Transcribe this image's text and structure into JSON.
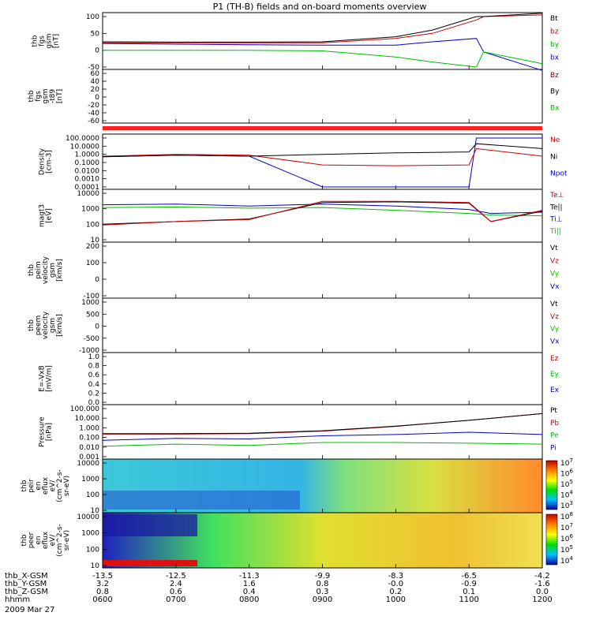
{
  "title": "P1 (TH-B) fields and on-board moments overview",
  "date_label": "2009 Mar 27",
  "time_axis": {
    "row_labels": [
      "thb_X-GSM",
      "thb_Y-GSM",
      "thb_Z-GSM",
      "hhmm"
    ],
    "columns": [
      [
        "-13.5",
        "3.2",
        "0.8",
        "0600"
      ],
      [
        "-12.5",
        "2.4",
        "0.6",
        "0700"
      ],
      [
        "-11.3",
        "1.6",
        "0.4",
        "0800"
      ],
      [
        "-9.9",
        "0.8",
        "0.3",
        "0900"
      ],
      [
        "-8.3",
        "-0.0",
        "0.2",
        "1000"
      ],
      [
        "-6.5",
        "-0.9",
        "0.1",
        "1100"
      ],
      [
        "-4.2",
        "-1.6",
        "0.0",
        "1200"
      ]
    ]
  },
  "panels": [
    {
      "ylabel": [
        "thb",
        "fgs",
        "gsm",
        "[nT]"
      ],
      "ticks": [
        "100",
        "50",
        "0",
        "-50"
      ],
      "legend": [
        [
          "Bt",
          "#000000"
        ],
        [
          "bz",
          "#cc0000"
        ],
        [
          "by",
          "#00bb00"
        ],
        [
          "bx",
          "#0000cc"
        ]
      ]
    },
    {
      "ylabel": [
        "thb",
        "fgs",
        "gsm",
        "-t89",
        "[nT]"
      ],
      "ticks": [
        "60",
        "40",
        "20",
        "0",
        "-20",
        "-40",
        "-60"
      ],
      "legend": [
        [
          "Bz",
          "#880000"
        ],
        [
          "By",
          "#000000"
        ],
        [
          "Bx",
          "#00bb00"
        ]
      ]
    },
    {
      "ylabel": [],
      "ticks": [],
      "legend": []
    },
    {
      "ylabel": [
        "Density",
        "[cm-3]"
      ],
      "ticks": [
        "100.0000",
        "10.0000",
        "1.0000",
        "0.1000",
        "0.0100",
        "0.0010",
        "0.0001"
      ],
      "legend": [
        [
          "Ne",
          "#cc0000"
        ],
        [
          "Ni",
          "#000000"
        ],
        [
          "Npot",
          "#0000cc"
        ]
      ]
    },
    {
      "ylabel": [
        "magt3",
        "[eV]"
      ],
      "ticks": [
        "10000",
        "1000",
        "100",
        "10"
      ],
      "legend": [
        [
          "Te⊥",
          "#cc0000"
        ],
        [
          "Te||",
          "#000000"
        ],
        [
          "Ti⊥",
          "#0000cc"
        ],
        [
          "Ti||",
          "#00bb00"
        ]
      ]
    },
    {
      "ylabel": [
        "thb",
        "peim",
        "velocity",
        "gsm",
        "[km/s]"
      ],
      "ticks": [
        "200",
        "100",
        "0",
        "-100"
      ],
      "legend": [
        [
          "Vt",
          "#000000"
        ],
        [
          "Vz",
          "#cc0000"
        ],
        [
          "Vy",
          "#00bb00"
        ],
        [
          "Vx",
          "#0000cc"
        ]
      ]
    },
    {
      "ylabel": [
        "thb",
        "peem",
        "velocity",
        "gsm",
        "[km/s]"
      ],
      "ticks": [
        "1000",
        "500",
        "0",
        "-500",
        "-1000"
      ],
      "legend": [
        [
          "Vt",
          "#000000"
        ],
        [
          "Vz",
          "#cc0000"
        ],
        [
          "Vy",
          "#00bb00"
        ],
        [
          "Vx",
          "#0000cc"
        ]
      ]
    },
    {
      "ylabel": [
        "E=-VxB",
        "[mV/m]"
      ],
      "ticks": [
        "1.0",
        "0.8",
        "0.6",
        "0.4",
        "0.2",
        "0.0"
      ],
      "legend": [
        [
          "Ez",
          "#cc0000"
        ],
        [
          "Ey",
          "#00bb00"
        ],
        [
          "Ex",
          "#0000cc"
        ]
      ]
    },
    {
      "ylabel": [
        "Pressure",
        "[nPa]"
      ],
      "ticks": [
        "100.000",
        "10.000",
        "1.000",
        "0.100",
        "0.010",
        "0.001"
      ],
      "legend": [
        [
          "Pt",
          "#000000"
        ],
        [
          "Pb",
          "#cc0000"
        ],
        [
          "Pe",
          "#00bb00"
        ],
        [
          "Pi",
          "#0000cc"
        ]
      ]
    },
    {
      "ylabel": [
        "thb",
        "peir",
        "en",
        "eflux",
        "eV/",
        "(cm^2-s-",
        "sr-eV)"
      ],
      "ticks": [
        "10000",
        "1000",
        "100",
        "10"
      ],
      "legend": [],
      "colorbar": [
        "10^7",
        "10^6",
        "10^5",
        "10^4",
        "10^3"
      ]
    },
    {
      "ylabel": [
        "thb",
        "peer",
        "en",
        "eflux",
        "eV/",
        "(cm^2-s-",
        "sr-eV)"
      ],
      "ticks": [
        "10000",
        "1000",
        "100",
        "10"
      ],
      "legend": [],
      "colorbar": [
        "10^8",
        "10^7",
        "10^6",
        "10^5",
        "10^4"
      ]
    }
  ],
  "chart_data": {
    "type": "line",
    "title": "P1 (TH-B) fields and on-board moments overview",
    "x_times": [
      "0600",
      "0700",
      "0800",
      "0900",
      "1000",
      "1100",
      "1200"
    ],
    "fgs_field_nT": {
      "x": [
        600,
        700,
        800,
        900,
        1000,
        1050,
        1110,
        1120,
        1200
      ],
      "Bt": [
        25,
        24,
        24,
        25,
        40,
        60,
        100,
        100,
        110
      ],
      "bz": [
        22,
        22,
        22,
        22,
        35,
        50,
        90,
        100,
        105
      ],
      "by": [
        0,
        0,
        0,
        -2,
        -20,
        -35,
        -50,
        -5,
        -40
      ],
      "bx": [
        20,
        18,
        16,
        15,
        15,
        25,
        35,
        -5,
        -60
      ]
    },
    "density_cm3": {
      "x": [
        600,
        700,
        800,
        900,
        1000,
        1100,
        1110,
        1200
      ],
      "Ni": [
        0.5,
        0.8,
        0.6,
        1.0,
        1.5,
        2.0,
        20.0,
        5.0
      ],
      "Ne": [
        0.6,
        1.0,
        0.8,
        0.05,
        0.04,
        0.05,
        5.0,
        0.6
      ],
      "Npot": [
        0.5,
        0.8,
        0.6,
        0.0001,
        0.0001,
        0.0001,
        100.0,
        100.0
      ]
    },
    "temperature_eV": {
      "x": [
        600,
        700,
        800,
        900,
        1000,
        1100,
        1130,
        1200
      ],
      "Te_perp": [
        90,
        150,
        200,
        3000,
        3000,
        2500,
        150,
        800
      ],
      "Te_par": [
        100,
        150,
        220,
        2500,
        2800,
        2300,
        150,
        700
      ],
      "Ti_perp": [
        1800,
        2000,
        1500,
        2000,
        1500,
        900,
        500,
        600
      ],
      "Ti_par": [
        1200,
        1300,
        1100,
        1200,
        800,
        500,
        400,
        350
      ]
    },
    "pressure_nPa": {
      "x": [
        600,
        700,
        800,
        900,
        1000,
        1100,
        1200
      ],
      "Pt": [
        0.25,
        0.25,
        0.27,
        0.5,
        1.5,
        6,
        30
      ],
      "Pb": [
        0.22,
        0.22,
        0.25,
        0.45,
        1.4,
        6,
        30
      ],
      "Pe": [
        0.012,
        0.02,
        0.015,
        0.03,
        0.03,
        0.025,
        0.02
      ],
      "Pi": [
        0.05,
        0.08,
        0.07,
        0.15,
        0.2,
        0.35,
        0.2
      ]
    }
  }
}
